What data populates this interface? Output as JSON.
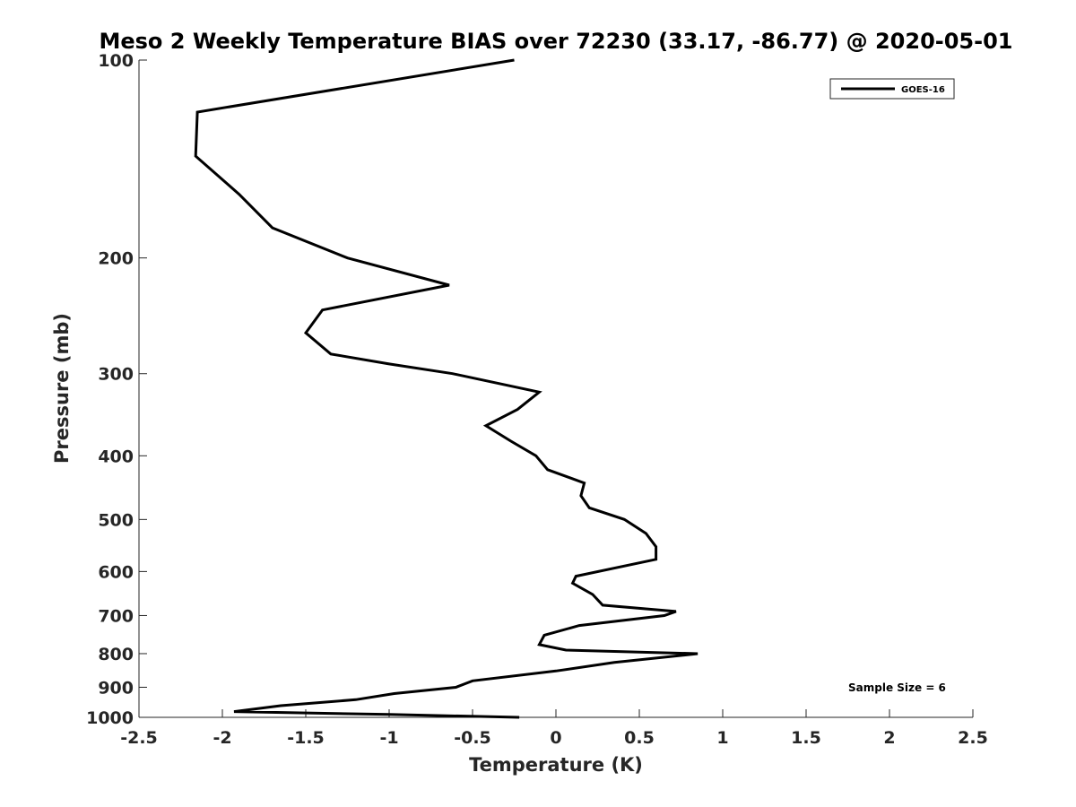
{
  "chart_data": {
    "type": "line",
    "title": "Meso 2 Weekly Temperature BIAS over 72230 (33.17, -86.77) @ 2020-05-01",
    "xlabel": "Temperature (K)",
    "ylabel": "Pressure (mb)",
    "xlim": [
      -2.5,
      2.5
    ],
    "ylim": [
      100,
      1000
    ],
    "y_scale": "log",
    "y_reversed": true,
    "x_ticks": [
      -2.5,
      -2,
      -1.5,
      -1,
      -0.5,
      0,
      0.5,
      1,
      1.5,
      2,
      2.5
    ],
    "x_tick_labels": [
      "-2.5",
      "-2",
      "-1.5",
      "-1",
      "-0.5",
      "0",
      "0.5",
      "1",
      "1.5",
      "2",
      "2.5"
    ],
    "y_ticks": [
      100,
      200,
      300,
      400,
      500,
      600,
      700,
      800,
      900,
      1000
    ],
    "y_tick_labels": [
      "100",
      "200",
      "300",
      "400",
      "500",
      "600",
      "700",
      "800",
      "900",
      "1000"
    ],
    "grid": false,
    "legend_position": "top-right",
    "series": [
      {
        "name": "GOES-16",
        "color": "#000000",
        "points": [
          {
            "x": -0.25,
            "y": 100
          },
          {
            "x": -2.15,
            "y": 120
          },
          {
            "x": -2.16,
            "y": 140
          },
          {
            "x": -1.9,
            "y": 160
          },
          {
            "x": -1.7,
            "y": 180
          },
          {
            "x": -1.25,
            "y": 200
          },
          {
            "x": -0.64,
            "y": 220
          },
          {
            "x": -1.4,
            "y": 240
          },
          {
            "x": -1.5,
            "y": 260
          },
          {
            "x": -1.35,
            "y": 280
          },
          {
            "x": -1.0,
            "y": 290
          },
          {
            "x": -0.62,
            "y": 300
          },
          {
            "x": -0.1,
            "y": 320
          },
          {
            "x": -0.23,
            "y": 340
          },
          {
            "x": -0.42,
            "y": 360
          },
          {
            "x": -0.27,
            "y": 380
          },
          {
            "x": -0.12,
            "y": 400
          },
          {
            "x": -0.05,
            "y": 420
          },
          {
            "x": 0.17,
            "y": 440
          },
          {
            "x": 0.15,
            "y": 460
          },
          {
            "x": 0.2,
            "y": 480
          },
          {
            "x": 0.41,
            "y": 500
          },
          {
            "x": 0.54,
            "y": 525
          },
          {
            "x": 0.6,
            "y": 550
          },
          {
            "x": 0.6,
            "y": 575
          },
          {
            "x": 0.12,
            "y": 610
          },
          {
            "x": 0.1,
            "y": 625
          },
          {
            "x": 0.22,
            "y": 650
          },
          {
            "x": 0.28,
            "y": 675
          },
          {
            "x": 0.72,
            "y": 690
          },
          {
            "x": 0.65,
            "y": 700
          },
          {
            "x": 0.14,
            "y": 725
          },
          {
            "x": -0.07,
            "y": 750
          },
          {
            "x": -0.1,
            "y": 775
          },
          {
            "x": 0.06,
            "y": 790
          },
          {
            "x": 0.85,
            "y": 800
          },
          {
            "x": 0.35,
            "y": 825
          },
          {
            "x": 0.0,
            "y": 850
          },
          {
            "x": -0.5,
            "y": 880
          },
          {
            "x": -0.6,
            "y": 900
          },
          {
            "x": -0.97,
            "y": 920
          },
          {
            "x": -1.2,
            "y": 940
          },
          {
            "x": -1.65,
            "y": 960
          },
          {
            "x": -1.93,
            "y": 980
          },
          {
            "x": -1.0,
            "y": 990
          },
          {
            "x": -0.22,
            "y": 1000
          }
        ]
      }
    ],
    "legend": {
      "label": "GOES-16"
    },
    "annotation": {
      "text": "Sample Size = 6",
      "position": "bottom-right"
    }
  }
}
